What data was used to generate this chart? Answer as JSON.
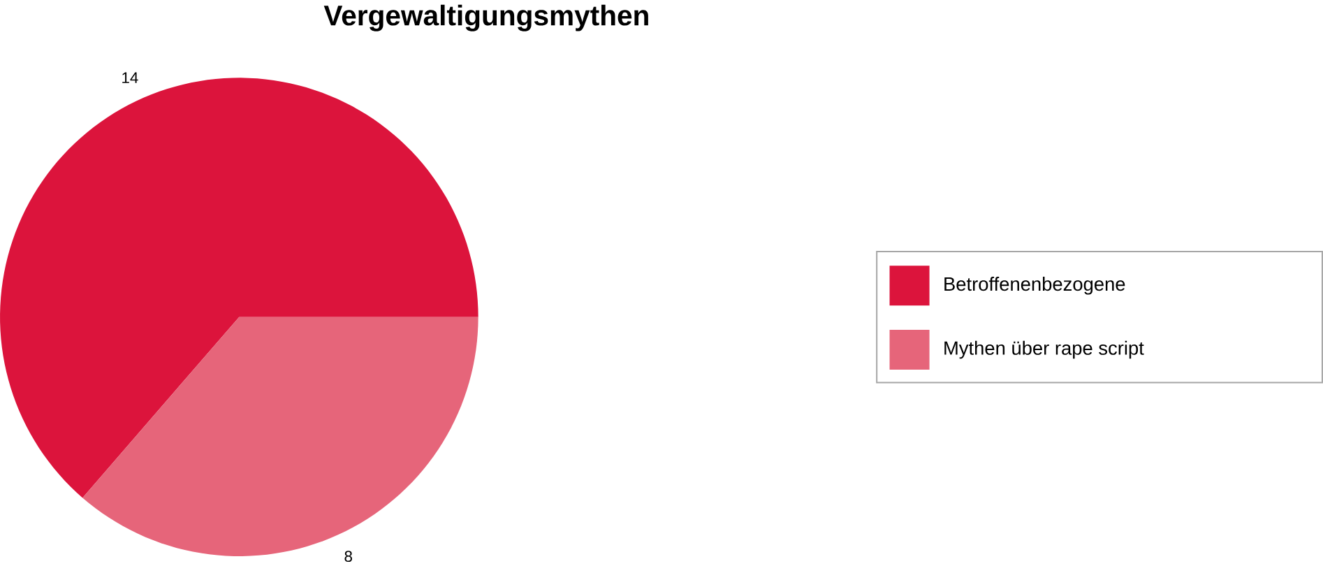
{
  "chart_data": {
    "type": "pie",
    "title": "Vergewaltigungsmythen",
    "categories": [
      "Betroffenenbezogene",
      "Mythen über rape script"
    ],
    "values": [
      14,
      8
    ],
    "colors": [
      "#dc143c",
      "#e6657a"
    ],
    "data_labels": true,
    "legend": "right"
  }
}
